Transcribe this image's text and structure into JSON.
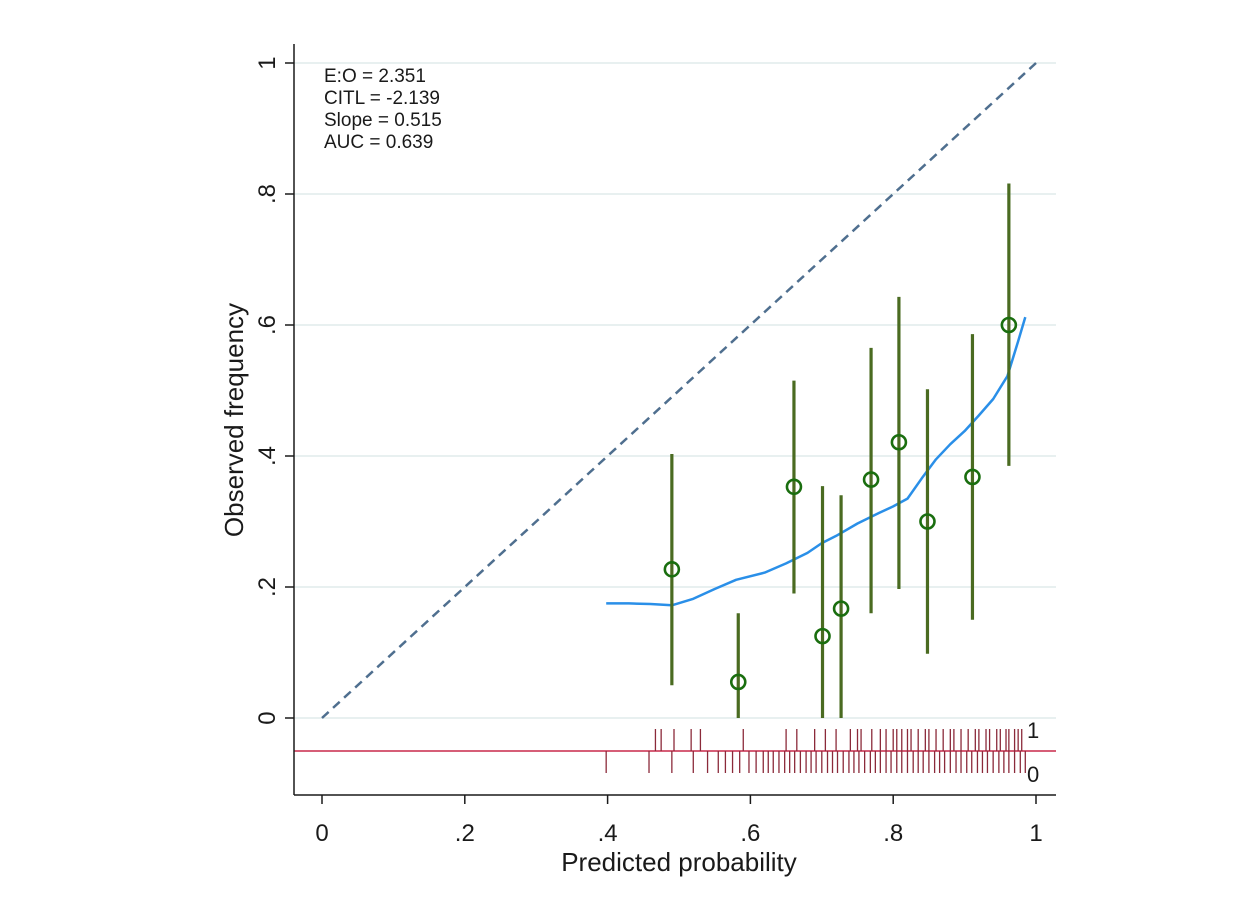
{
  "chart_data": {
    "type": "scatter",
    "title": "",
    "xlabel": "Predicted probability",
    "ylabel": "Observed frequency",
    "xlim": [
      0,
      1
    ],
    "ylim": [
      -0.1,
      1
    ],
    "grid": "horizontal",
    "x_ticks": [
      {
        "value": 0,
        "label": "0"
      },
      {
        "value": 0.2,
        "label": ".2"
      },
      {
        "value": 0.4,
        "label": ".4"
      },
      {
        "value": 0.6,
        "label": ".6"
      },
      {
        "value": 0.8,
        "label": ".8"
      },
      {
        "value": 1,
        "label": "1"
      }
    ],
    "y_ticks": [
      {
        "value": 0,
        "label": "0"
      },
      {
        "value": 0.2,
        "label": ".2"
      },
      {
        "value": 0.4,
        "label": ".4"
      },
      {
        "value": 0.6,
        "label": ".6"
      },
      {
        "value": 0.8,
        "label": ".8"
      },
      {
        "value": 1,
        "label": "1"
      }
    ],
    "stats": [
      "E:O = 2.351",
      "CITL = -2.139",
      "Slope = 0.515",
      "AUC = 0.639"
    ],
    "reference_line": {
      "x": [
        0,
        1
      ],
      "y": [
        0,
        1
      ]
    },
    "groups": [
      {
        "x": 0.49,
        "y": 0.227,
        "lo": 0.05,
        "hi": 0.403
      },
      {
        "x": 0.583,
        "y": 0.055,
        "lo": 0.0,
        "hi": 0.16
      },
      {
        "x": 0.661,
        "y": 0.353,
        "lo": 0.19,
        "hi": 0.515
      },
      {
        "x": 0.701,
        "y": 0.125,
        "lo": 0.0,
        "hi": 0.354
      },
      {
        "x": 0.727,
        "y": 0.167,
        "lo": 0.0,
        "hi": 0.34
      },
      {
        "x": 0.769,
        "y": 0.364,
        "lo": 0.16,
        "hi": 0.565
      },
      {
        "x": 0.808,
        "y": 0.421,
        "lo": 0.197,
        "hi": 0.643
      },
      {
        "x": 0.848,
        "y": 0.3,
        "lo": 0.098,
        "hi": 0.502
      },
      {
        "x": 0.911,
        "y": 0.368,
        "lo": 0.15,
        "hi": 0.586
      },
      {
        "x": 0.962,
        "y": 0.6,
        "lo": 0.385,
        "hi": 0.816
      }
    ],
    "smooth_curve": {
      "x": [
        0.398,
        0.43,
        0.46,
        0.49,
        0.52,
        0.55,
        0.58,
        0.62,
        0.65,
        0.68,
        0.7,
        0.72,
        0.75,
        0.78,
        0.8,
        0.82,
        0.84,
        0.86,
        0.88,
        0.9,
        0.92,
        0.94,
        0.96,
        0.975,
        0.985
      ],
      "y": [
        0.175,
        0.175,
        0.174,
        0.172,
        0.182,
        0.197,
        0.211,
        0.222,
        0.236,
        0.252,
        0.267,
        0.278,
        0.297,
        0.313,
        0.323,
        0.335,
        0.366,
        0.395,
        0.418,
        0.438,
        0.462,
        0.487,
        0.522,
        0.575,
        0.612
      ]
    },
    "rug_labels": {
      "event": "1",
      "non_event": "0"
    },
    "rug_event_x": [
      0.467,
      0.475,
      0.493,
      0.517,
      0.53,
      0.59,
      0.65,
      0.665,
      0.69,
      0.705,
      0.72,
      0.74,
      0.75,
      0.755,
      0.77,
      0.782,
      0.79,
      0.8,
      0.805,
      0.812,
      0.82,
      0.825,
      0.835,
      0.845,
      0.85,
      0.86,
      0.87,
      0.88,
      0.885,
      0.895,
      0.905,
      0.915,
      0.92,
      0.93,
      0.935,
      0.945,
      0.95,
      0.958,
      0.962,
      0.97,
      0.975,
      0.98
    ],
    "rug_nonevent_x": [
      0.398,
      0.458,
      0.49,
      0.52,
      0.54,
      0.555,
      0.565,
      0.575,
      0.585,
      0.598,
      0.608,
      0.618,
      0.625,
      0.632,
      0.64,
      0.648,
      0.655,
      0.662,
      0.67,
      0.678,
      0.685,
      0.692,
      0.7,
      0.708,
      0.715,
      0.722,
      0.73,
      0.738,
      0.745,
      0.752,
      0.76,
      0.768,
      0.775,
      0.782,
      0.79,
      0.797,
      0.805,
      0.812,
      0.82,
      0.828,
      0.835,
      0.842,
      0.85,
      0.858,
      0.865,
      0.872,
      0.88,
      0.888,
      0.895,
      0.903,
      0.91,
      0.918,
      0.925,
      0.932,
      0.94,
      0.948,
      0.955,
      0.962,
      0.97,
      0.978,
      0.985
    ],
    "colors": {
      "background": "#ffffff",
      "grid": "#e1ebeb",
      "axis": "#1a1a1a",
      "reference_line": "#4f6f8f",
      "points": "#1a6e0f",
      "ci_bars": "#4a6b21",
      "smooth_curve": "#2a8fe8",
      "rug_line": "#c8284a",
      "rug_ticks": "#8b2a3a"
    }
  }
}
